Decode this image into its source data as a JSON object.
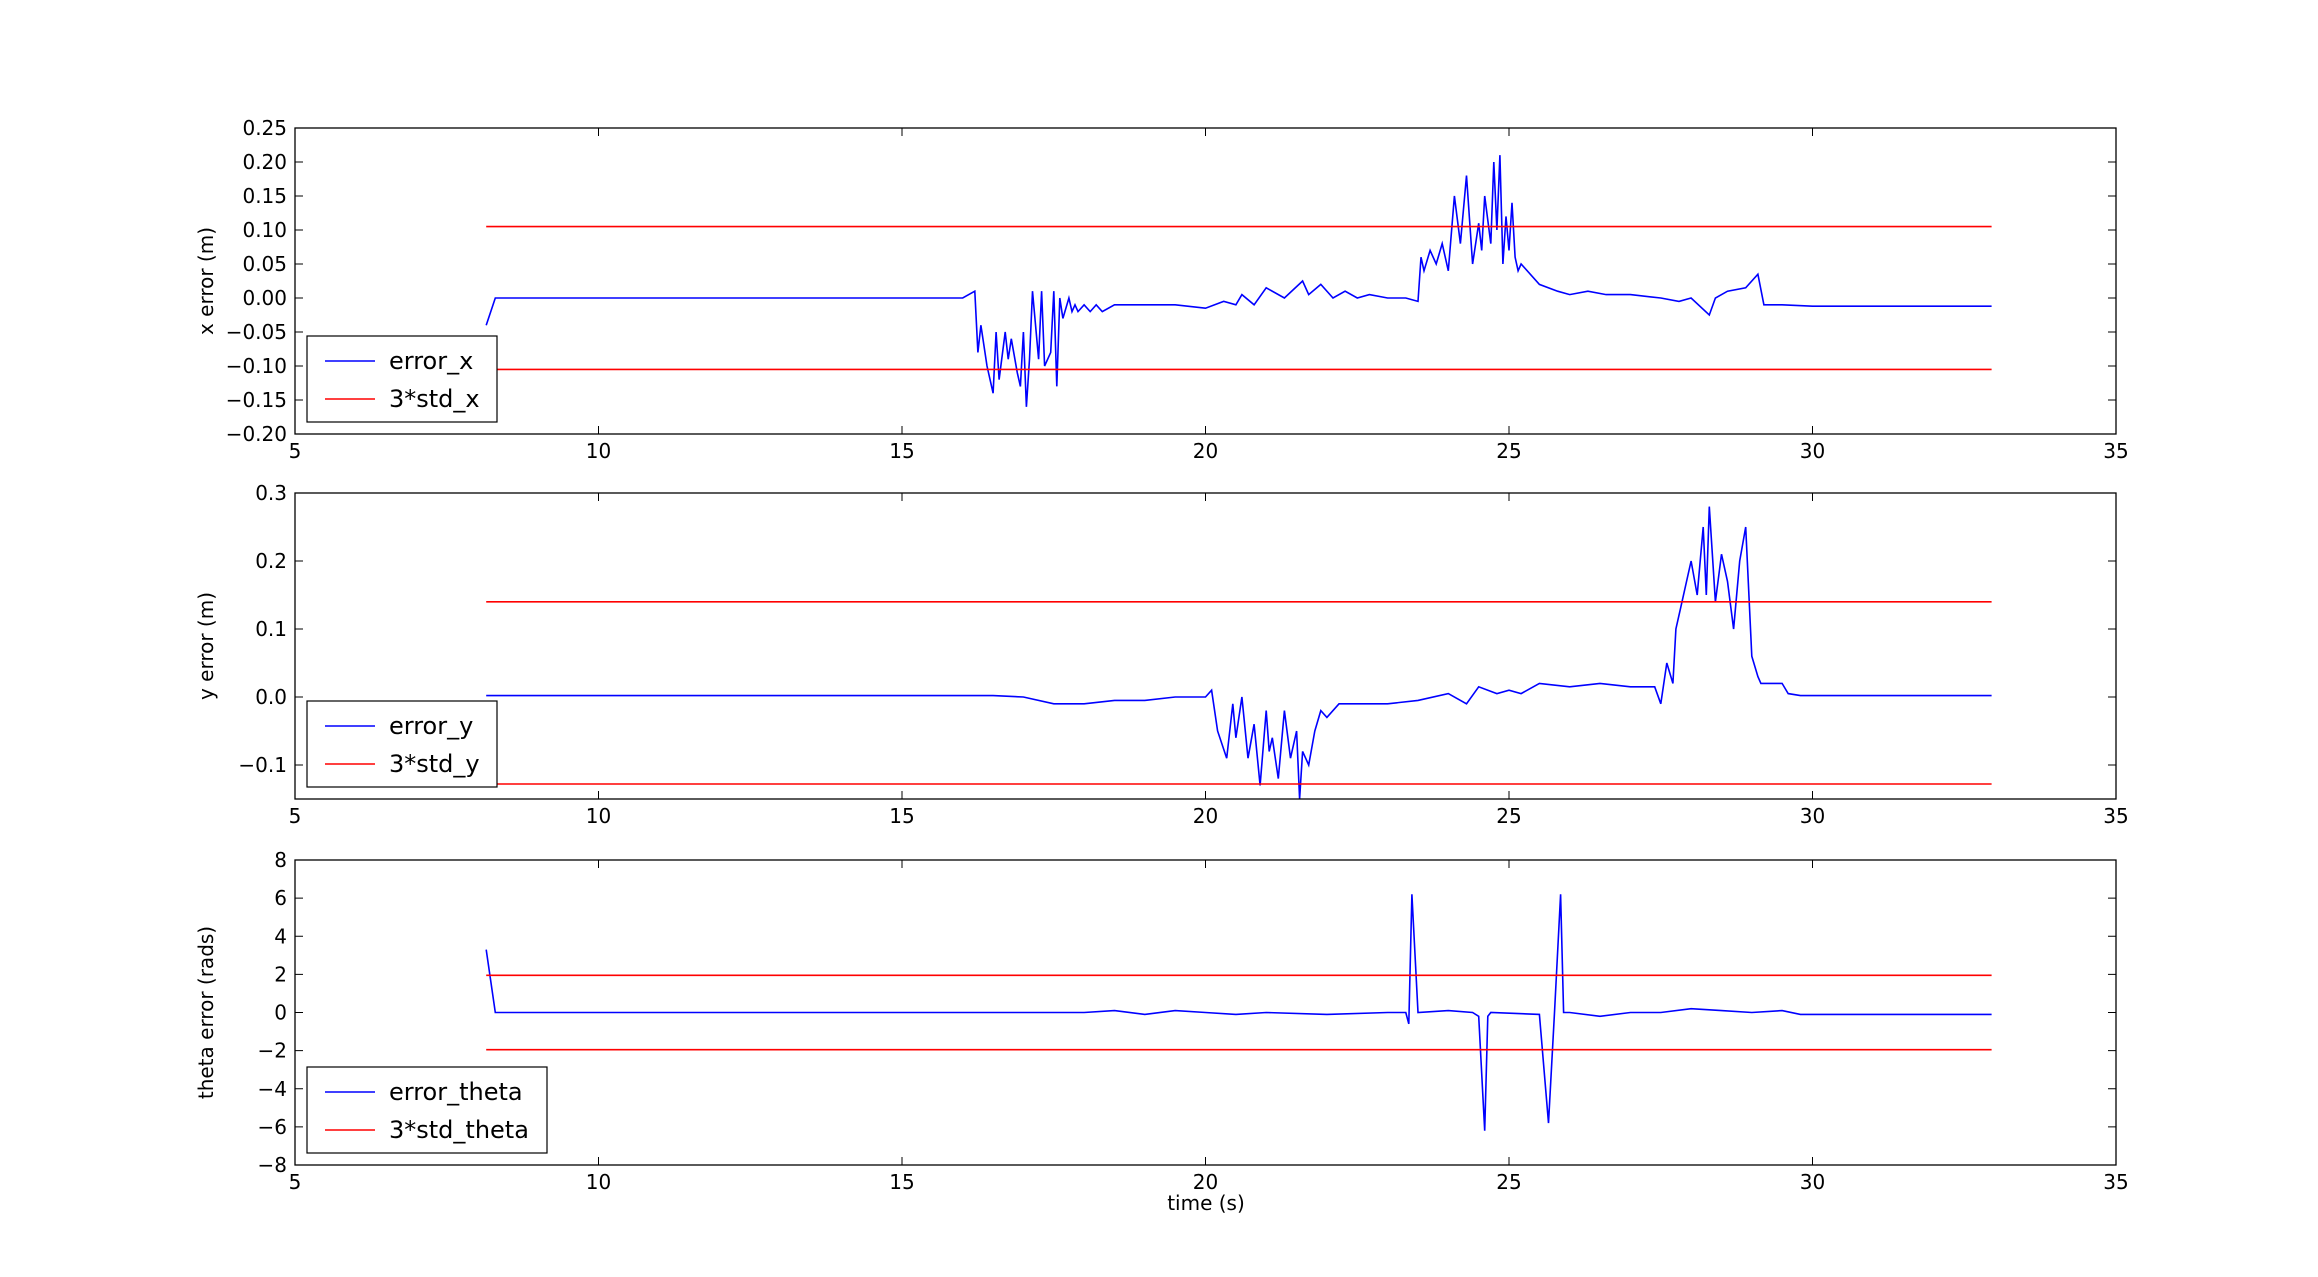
{
  "xlabel": "time (s)",
  "chart_data": [
    {
      "type": "line",
      "xlabel": "",
      "ylabel": "x error (m)",
      "xlim": [
        5,
        35
      ],
      "ylim": [
        -0.2,
        0.25
      ],
      "xticks": [
        5,
        10,
        15,
        20,
        25,
        30,
        35
      ],
      "yticks": [
        -0.2,
        -0.15,
        -0.1,
        -0.05,
        0.0,
        0.05,
        0.1,
        0.15,
        0.2,
        0.25
      ],
      "ytick_labels": [
        "−0.20",
        "−0.15",
        "−0.10",
        "−0.05",
        "0.00",
        "0.05",
        "0.10",
        "0.15",
        "0.20",
        "0.25"
      ],
      "legend": {
        "position": "lower-left",
        "entries": [
          "error_x",
          "3*std_x"
        ]
      },
      "series": [
        {
          "name": "error_x",
          "color": "#0000ff",
          "x": [
            8.15,
            8.3,
            10,
            12,
            14,
            15,
            16.0,
            16.2,
            16.25,
            16.3,
            16.4,
            16.5,
            16.55,
            16.6,
            16.7,
            16.75,
            16.8,
            16.9,
            16.95,
            17.0,
            17.05,
            17.1,
            17.15,
            17.25,
            17.3,
            17.35,
            17.45,
            17.5,
            17.55,
            17.6,
            17.65,
            17.75,
            17.8,
            17.85,
            17.9,
            18.0,
            18.1,
            18.2,
            18.3,
            18.5,
            19.0,
            19.5,
            20.0,
            20.3,
            20.5,
            20.6,
            20.8,
            21.0,
            21.3,
            21.6,
            21.7,
            21.9,
            22.1,
            22.3,
            22.5,
            22.7,
            23.0,
            23.3,
            23.5,
            23.55,
            23.6,
            23.7,
            23.8,
            23.9,
            24.0,
            24.1,
            24.2,
            24.3,
            24.4,
            24.5,
            24.55,
            24.6,
            24.7,
            24.75,
            24.8,
            24.85,
            24.9,
            24.95,
            25.0,
            25.05,
            25.1,
            25.15,
            25.2,
            25.5,
            25.8,
            26.0,
            26.3,
            26.6,
            27.0,
            27.5,
            27.8,
            28.0,
            28.3,
            28.4,
            28.6,
            28.9,
            29.1,
            29.2,
            29.3,
            29.5,
            30.0,
            31.0,
            32.0,
            32.95
          ],
          "y": [
            -0.04,
            0.0,
            0.0,
            0.0,
            0.0,
            0.0,
            0.0,
            0.01,
            -0.08,
            -0.04,
            -0.1,
            -0.14,
            -0.05,
            -0.12,
            -0.05,
            -0.09,
            -0.06,
            -0.11,
            -0.13,
            -0.05,
            -0.16,
            -0.09,
            0.01,
            -0.09,
            0.01,
            -0.1,
            -0.08,
            0.01,
            -0.13,
            0.0,
            -0.03,
            0.0,
            -0.02,
            -0.01,
            -0.02,
            -0.01,
            -0.02,
            -0.01,
            -0.02,
            -0.01,
            -0.01,
            -0.01,
            -0.015,
            -0.005,
            -0.01,
            0.005,
            -0.01,
            0.015,
            0.0,
            0.025,
            0.005,
            0.02,
            0.0,
            0.01,
            0.0,
            0.005,
            0.0,
            0.0,
            -0.005,
            0.06,
            0.04,
            0.07,
            0.05,
            0.08,
            0.04,
            0.15,
            0.08,
            0.18,
            0.05,
            0.11,
            0.07,
            0.15,
            0.08,
            0.2,
            0.1,
            0.21,
            0.05,
            0.12,
            0.07,
            0.14,
            0.06,
            0.04,
            0.05,
            0.02,
            0.01,
            0.005,
            0.01,
            0.005,
            0.005,
            0.0,
            -0.005,
            0.0,
            -0.025,
            0.0,
            0.01,
            0.015,
            0.035,
            -0.01,
            -0.01,
            -0.01,
            -0.012,
            -0.012,
            -0.012,
            -0.012
          ]
        },
        {
          "name": "3*std_x",
          "color": "#ff0000",
          "x": [
            8.15,
            32.95
          ],
          "y": [
            0.105,
            0.105
          ]
        },
        {
          "name": "",
          "color": "#ff0000",
          "x": [
            8.15,
            32.95
          ],
          "y": [
            -0.105,
            -0.105
          ]
        }
      ]
    },
    {
      "type": "line",
      "xlabel": "",
      "ylabel": "y error (m)",
      "xlim": [
        5,
        35
      ],
      "ylim": [
        -0.15,
        0.3
      ],
      "xticks": [
        5,
        10,
        15,
        20,
        25,
        30,
        35
      ],
      "yticks": [
        -0.1,
        0.0,
        0.1,
        0.2,
        0.3
      ],
      "ytick_labels": [
        "−0.1",
        "0.0",
        "0.1",
        "0.2",
        "0.3"
      ],
      "legend": {
        "position": "lower-left",
        "entries": [
          "error_y",
          "3*std_y"
        ]
      },
      "series": [
        {
          "name": "error_y",
          "color": "#0000ff",
          "x": [
            8.15,
            10,
            12,
            14,
            16,
            16.5,
            17.0,
            17.5,
            18.0,
            18.5,
            19.0,
            19.5,
            20.0,
            20.1,
            20.2,
            20.35,
            20.45,
            20.5,
            20.6,
            20.7,
            20.8,
            20.9,
            21.0,
            21.05,
            21.1,
            21.2,
            21.3,
            21.4,
            21.5,
            21.55,
            21.6,
            21.7,
            21.8,
            21.9,
            22.0,
            22.2,
            22.5,
            23.0,
            23.5,
            24.0,
            24.3,
            24.5,
            24.8,
            25.0,
            25.2,
            25.5,
            26.0,
            26.5,
            27.0,
            27.4,
            27.5,
            27.6,
            27.7,
            27.75,
            27.85,
            28.0,
            28.1,
            28.2,
            28.25,
            28.3,
            28.4,
            28.5,
            28.6,
            28.7,
            28.8,
            28.9,
            29.0,
            29.1,
            29.15,
            29.2,
            29.3,
            29.5,
            29.6,
            29.8,
            30.0,
            31.0,
            32.0,
            32.95
          ],
          "y": [
            0.002,
            0.002,
            0.002,
            0.002,
            0.002,
            0.002,
            0.0,
            -0.01,
            -0.01,
            -0.005,
            -0.005,
            0.0,
            0.0,
            0.01,
            -0.05,
            -0.09,
            -0.01,
            -0.06,
            0.0,
            -0.09,
            -0.04,
            -0.13,
            -0.02,
            -0.08,
            -0.06,
            -0.12,
            -0.02,
            -0.09,
            -0.05,
            -0.15,
            -0.08,
            -0.1,
            -0.05,
            -0.02,
            -0.03,
            -0.01,
            -0.01,
            -0.01,
            -0.005,
            0.005,
            -0.01,
            0.015,
            0.005,
            0.01,
            0.005,
            0.02,
            0.015,
            0.02,
            0.015,
            0.015,
            -0.01,
            0.05,
            0.02,
            0.1,
            0.14,
            0.2,
            0.15,
            0.25,
            0.15,
            0.28,
            0.14,
            0.21,
            0.17,
            0.1,
            0.2,
            0.25,
            0.06,
            0.03,
            0.02,
            0.02,
            0.02,
            0.02,
            0.005,
            0.002,
            0.002,
            0.002,
            0.002,
            0.002
          ]
        },
        {
          "name": "3*std_y",
          "color": "#ff0000",
          "x": [
            8.15,
            32.95
          ],
          "y": [
            0.14,
            0.14
          ]
        },
        {
          "name": "",
          "color": "#ff0000",
          "x": [
            8.15,
            32.95
          ],
          "y": [
            -0.128,
            -0.128
          ]
        }
      ]
    },
    {
      "type": "line",
      "xlabel": "time (s)",
      "ylabel": "theta error (rads)",
      "xlim": [
        5,
        35
      ],
      "ylim": [
        -8,
        8
      ],
      "xticks": [
        5,
        10,
        15,
        20,
        25,
        30,
        35
      ],
      "yticks": [
        -8,
        -6,
        -4,
        -2,
        0,
        2,
        4,
        6,
        8
      ],
      "ytick_labels": [
        "−8",
        "−6",
        "−4",
        "−2",
        "0",
        "2",
        "4",
        "6",
        "8"
      ],
      "legend": {
        "position": "lower-left",
        "entries": [
          "error_theta",
          "3*std_theta"
        ]
      },
      "series": [
        {
          "name": "error_theta",
          "color": "#0000ff",
          "x": [
            8.15,
            8.3,
            10,
            12,
            14,
            16,
            18.0,
            18.5,
            19.0,
            19.5,
            20.0,
            20.5,
            21.0,
            22.0,
            23.0,
            23.3,
            23.35,
            23.4,
            23.5,
            24.0,
            24.4,
            24.5,
            24.6,
            24.65,
            24.7,
            25.5,
            25.65,
            25.75,
            25.85,
            25.9,
            26.0,
            26.5,
            27.0,
            27.5,
            28.0,
            28.5,
            29.0,
            29.5,
            29.8,
            30.0,
            31.0,
            32.0,
            32.95
          ],
          "y": [
            3.3,
            0.0,
            0.0,
            0.0,
            0.0,
            0.0,
            0.0,
            0.1,
            -0.1,
            0.1,
            0.0,
            -0.1,
            0.0,
            -0.1,
            0.0,
            0.0,
            -0.6,
            6.2,
            0.0,
            0.1,
            0.0,
            -0.2,
            -6.2,
            -0.2,
            0.0,
            -0.1,
            -5.8,
            0.0,
            6.2,
            0.0,
            0.0,
            -0.2,
            0.0,
            0.0,
            0.2,
            0.1,
            0.0,
            0.1,
            -0.1,
            -0.1,
            -0.1,
            -0.1,
            -0.1
          ]
        },
        {
          "name": "3*std_theta",
          "color": "#ff0000",
          "x": [
            8.15,
            32.95
          ],
          "y": [
            1.95,
            1.95
          ]
        },
        {
          "name": "",
          "color": "#ff0000",
          "x": [
            8.15,
            32.95
          ],
          "y": [
            -1.95,
            -1.95
          ]
        }
      ]
    }
  ]
}
